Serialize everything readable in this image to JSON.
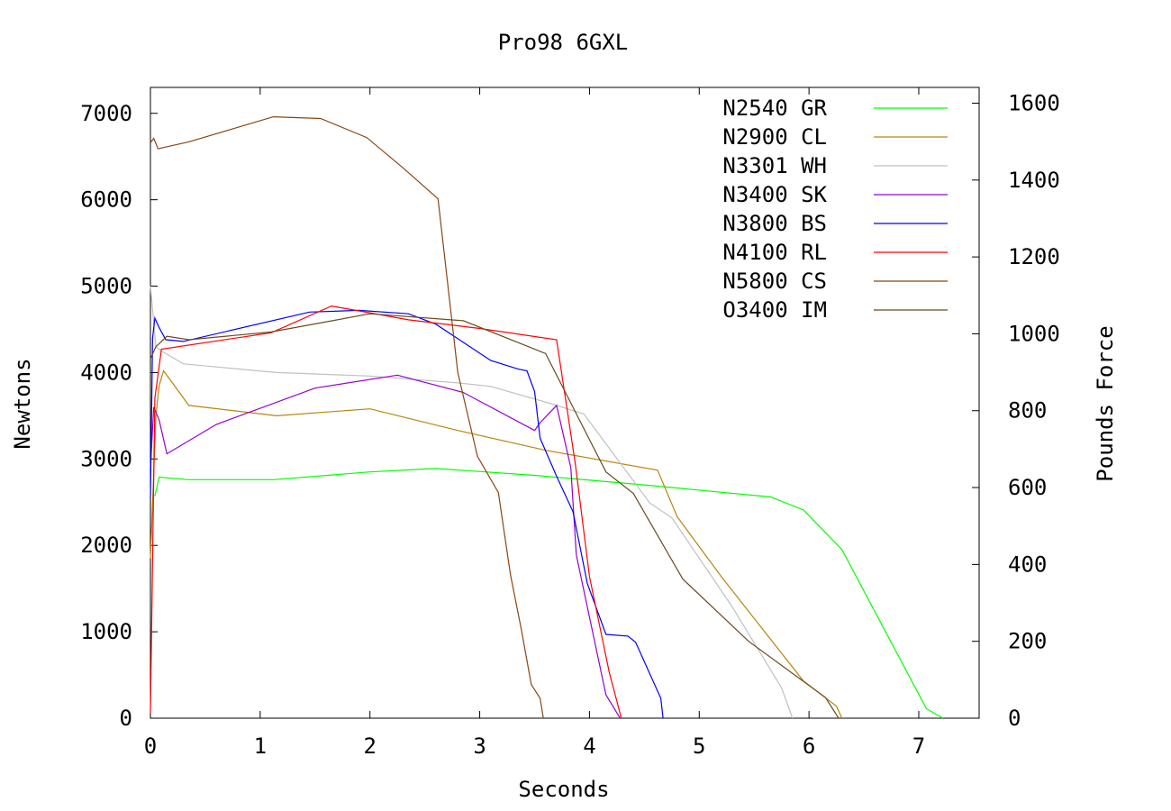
{
  "chart_data": {
    "type": "line",
    "title": "Pro98 6GXL",
    "xlabel": "Seconds",
    "ylabel": "Newtons",
    "y2label": "Pounds Force",
    "xlim": [
      0,
      7.55
    ],
    "ylim": [
      0,
      7300
    ],
    "y2lim": [
      0,
      1641
    ],
    "xticks": [
      0,
      1,
      2,
      3,
      4,
      5,
      6,
      7
    ],
    "yticks": [
      0,
      1000,
      2000,
      3000,
      4000,
      5000,
      6000,
      7000
    ],
    "y2ticks": [
      0,
      200,
      400,
      600,
      800,
      1000,
      1200,
      1400,
      1600
    ],
    "grid": false,
    "legend_position": "top-right",
    "series": [
      {
        "name": "N2540 GR",
        "color": "#00ff00",
        "x": [
          0.04,
          0.08,
          0.35,
          1.12,
          2.0,
          2.6,
          3.5,
          4.5,
          5.65,
          5.95,
          6.3,
          7.07,
          7.22
        ],
        "y": [
          2570,
          2790,
          2760,
          2760,
          2850,
          2890,
          2810,
          2700,
          2560,
          2410,
          1950,
          110,
          0
        ]
      },
      {
        "name": "N2900 CL",
        "color": "#b8860b",
        "x": [
          0.0,
          0.05,
          0.08,
          0.12,
          0.35,
          1.15,
          2.0,
          2.8,
          3.6,
          4.62,
          4.8,
          5.2,
          5.95,
          6.25,
          6.3
        ],
        "y": [
          1850,
          3500,
          3850,
          4020,
          3620,
          3500,
          3580,
          3330,
          3100,
          2870,
          2330,
          1640,
          430,
          140,
          0
        ]
      },
      {
        "name": "N3301 WH",
        "color": "#c0c0c0",
        "x": [
          0.0,
          0.05,
          0.1,
          0.3,
          1.15,
          2.0,
          2.8,
          3.1,
          3.65,
          3.95,
          4.55,
          4.75,
          5.3,
          5.75,
          5.85
        ],
        "y": [
          5000,
          4300,
          4250,
          4100,
          4000,
          3960,
          3880,
          3840,
          3640,
          3520,
          2490,
          2320,
          1290,
          350,
          0
        ]
      },
      {
        "name": "N3400 SK",
        "color": "#9400d3",
        "x": [
          0.0,
          0.03,
          0.08,
          0.15,
          0.6,
          1.5,
          2.25,
          2.85,
          3.5,
          3.55,
          3.7,
          3.83,
          3.88,
          4.15,
          4.28
        ],
        "y": [
          2900,
          3600,
          3450,
          3060,
          3400,
          3820,
          3970,
          3770,
          3330,
          3420,
          3620,
          2900,
          1890,
          270,
          0
        ]
      },
      {
        "name": "N3800 BS",
        "color": "#0000ff",
        "x": [
          0.0,
          0.02,
          0.04,
          0.08,
          0.14,
          0.3,
          1.45,
          1.9,
          2.35,
          2.6,
          3.1,
          3.35,
          3.43,
          3.5,
          3.55,
          3.7,
          3.85,
          3.98,
          4.15,
          4.35,
          4.42,
          4.65,
          4.67
        ],
        "y": [
          2550,
          4400,
          4630,
          4520,
          4380,
          4360,
          4700,
          4720,
          4680,
          4560,
          4140,
          4040,
          4020,
          3780,
          3240,
          2800,
          2390,
          1560,
          970,
          950,
          880,
          230,
          0
        ]
      },
      {
        "name": "N4100 RL",
        "color": "#ff0000",
        "x": [
          0.0,
          0.04,
          0.1,
          1.1,
          1.65,
          2.35,
          3.0,
          3.7,
          3.87,
          4.0,
          4.18,
          4.29
        ],
        "y": [
          60,
          3700,
          4270,
          4460,
          4770,
          4610,
          4510,
          4380,
          2950,
          1640,
          530,
          0
        ]
      },
      {
        "name": "N5800 CS",
        "color": "#8b4513",
        "x": [
          0.0,
          0.03,
          0.07,
          0.35,
          1.12,
          1.55,
          1.97,
          2.3,
          2.62,
          2.8,
          2.98,
          3.17,
          3.28,
          3.38,
          3.47,
          3.55,
          3.58
        ],
        "y": [
          6660,
          6710,
          6590,
          6670,
          6960,
          6940,
          6720,
          6370,
          6010,
          4000,
          3030,
          2610,
          1660,
          1020,
          390,
          230,
          0
        ]
      },
      {
        "name": "O3400 IM",
        "color": "#6b4a1e",
        "x": [
          0.0,
          0.05,
          0.15,
          0.35,
          1.1,
          2.0,
          2.85,
          3.6,
          4.15,
          4.4,
          4.85,
          5.45,
          6.15,
          6.27
        ],
        "y": [
          4160,
          4300,
          4420,
          4380,
          4470,
          4680,
          4600,
          4220,
          2850,
          2600,
          1610,
          890,
          240,
          0
        ]
      }
    ]
  }
}
